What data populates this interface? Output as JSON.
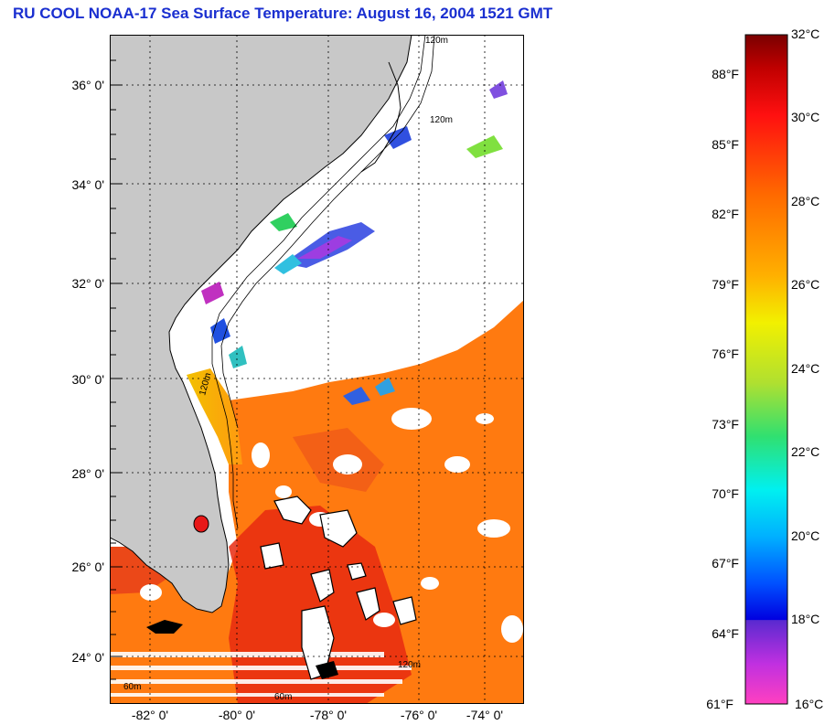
{
  "title": "RU COOL  NOAA-17  Sea Surface Temperature:  August 16, 2004 1521 GMT",
  "latitude_labels": [
    "36° 0'",
    "34° 0'",
    "32° 0'",
    "30° 0'",
    "28° 0'",
    "26° 0'",
    "24° 0'"
  ],
  "longitude_labels": [
    "-82° 0'",
    "-80° 0'",
    "-78° 0'",
    "-76° 0'",
    "-74° 0'"
  ],
  "contour_labels": [
    "120m",
    "120m",
    "120m",
    "60m",
    "60m",
    "120m"
  ],
  "colorbar": {
    "fahrenheit_labels": [
      "88°F",
      "85°F",
      "82°F",
      "79°F",
      "76°F",
      "73°F",
      "70°F",
      "67°F",
      "64°F",
      "61°F"
    ],
    "celsius_labels": [
      "32°C",
      "30°C",
      "28°C",
      "26°C",
      "24°C",
      "22°C",
      "20°C",
      "18°C",
      "16°C"
    ]
  },
  "colors": {
    "title": "#1a2fd0",
    "land": "#c8c8c8",
    "cloud": "#ffffff",
    "warm_water": "#ff7a10",
    "hot_water": "#e82a10"
  }
}
